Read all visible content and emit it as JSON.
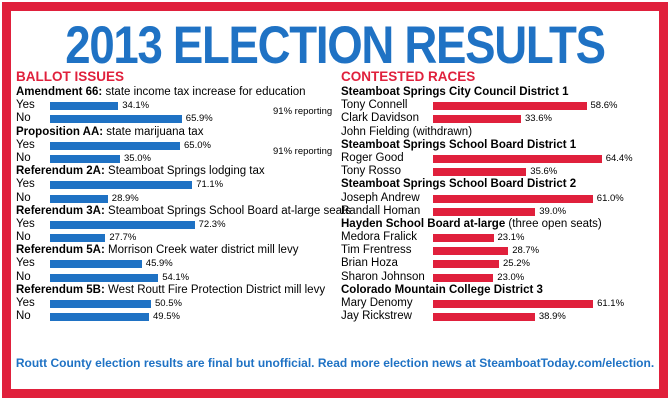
{
  "header": {
    "title": "2013 ELECTION RESULTS"
  },
  "left_section_title": "BALLOT ISSUES",
  "right_section_title": "CONTESTED RACES",
  "footer": "Routt County election results are final but unofficial. Read more election news at SteamboatToday.com/election.",
  "colors": {
    "brand_blue": "#1f72c4",
    "brand_red": "#e0203c"
  },
  "chart_data": [
    {
      "type": "bar",
      "title": "BALLOT ISSUES",
      "groups": [
        {
          "name": "Amendment 66:",
          "desc": "state income tax increase for education",
          "reporting": "91% reporting",
          "rows": [
            {
              "label": "Yes",
              "value": 34.1,
              "text": "34.1%"
            },
            {
              "label": "No",
              "value": 65.9,
              "text": "65.9%"
            }
          ]
        },
        {
          "name": "Proposition AA:",
          "desc": "state marijuana tax",
          "reporting": "91% reporting",
          "rows": [
            {
              "label": "Yes",
              "value": 65.0,
              "text": "65.0%"
            },
            {
              "label": "No",
              "value": 35.0,
              "text": "35.0%"
            }
          ]
        },
        {
          "name": "Referendum 2A:",
          "desc": "Steamboat Springs lodging tax",
          "reporting": "",
          "rows": [
            {
              "label": "Yes",
              "value": 71.1,
              "text": "71.1%"
            },
            {
              "label": "No",
              "value": 28.9,
              "text": "28.9%"
            }
          ]
        },
        {
          "name": "Referendum 3A:",
          "desc": "Steamboat Springs School Board at-large seats",
          "reporting": "",
          "rows": [
            {
              "label": "Yes",
              "value": 72.3,
              "text": "72.3%"
            },
            {
              "label": "No",
              "value": 27.7,
              "text": "27.7%"
            }
          ]
        },
        {
          "name": "Referendum 5A:",
          "desc": "Morrison Creek water district mill levy",
          "reporting": "",
          "rows": [
            {
              "label": "Yes",
              "value": 45.9,
              "text": "45.9%"
            },
            {
              "label": "No",
              "value": 54.1,
              "text": "54.1%"
            }
          ]
        },
        {
          "name": "Referendum 5B:",
          "desc": "West Routt Fire Protection District mill levy",
          "reporting": "",
          "rows": [
            {
              "label": "Yes",
              "value": 50.5,
              "text": "50.5%"
            },
            {
              "label": "No",
              "value": 49.5,
              "text": "49.5%"
            }
          ]
        }
      ]
    },
    {
      "type": "bar",
      "title": "CONTESTED RACES",
      "groups": [
        {
          "name": "Steamboat Springs City Council District 1",
          "desc": "",
          "rows": [
            {
              "label": "Tony Connell",
              "value": 58.6,
              "text": "58.6%"
            },
            {
              "label": "Clark Davidson",
              "value": 33.6,
              "text": "33.6%"
            },
            {
              "label": "John Fielding (withdrawn)",
              "value": null,
              "text": ""
            }
          ]
        },
        {
          "name": "Steamboat Springs School Board District 1",
          "desc": "",
          "rows": [
            {
              "label": "Roger Good",
              "value": 64.4,
              "text": "64.4%"
            },
            {
              "label": "Tony Rosso",
              "value": 35.6,
              "text": "35.6%"
            }
          ]
        },
        {
          "name": "Steamboat Springs School Board District 2",
          "desc": "",
          "rows": [
            {
              "label": "Joseph Andrew",
              "value": 61.0,
              "text": "61.0%"
            },
            {
              "label": "Randall Homan",
              "value": 39.0,
              "text": "39.0%"
            }
          ]
        },
        {
          "name": "Hayden School Board at-large",
          "desc": "(three open seats)",
          "rows": [
            {
              "label": "Medora Fralick",
              "value": 23.1,
              "text": "23.1%"
            },
            {
              "label": "Tim Frentress",
              "value": 28.7,
              "text": "28.7%"
            },
            {
              "label": "Brian Hoza",
              "value": 25.2,
              "text": "25.2%"
            },
            {
              "label": "Sharon Johnson",
              "value": 23.0,
              "text": "23.0%"
            }
          ]
        },
        {
          "name": "Colorado Mountain College District 3",
          "desc": "",
          "rows": [
            {
              "label": "Mary Denomy",
              "value": 61.1,
              "text": "61.1%"
            },
            {
              "label": "Jay Rickstrew",
              "value": 38.9,
              "text": "38.9%"
            }
          ]
        }
      ]
    }
  ]
}
